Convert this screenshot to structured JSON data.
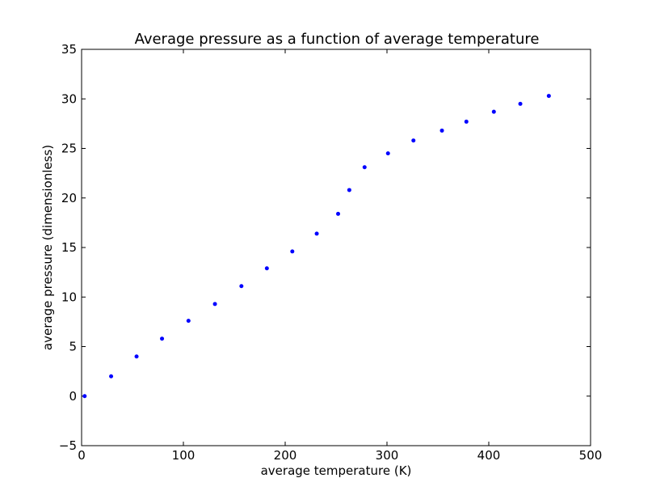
{
  "chart_data": {
    "type": "scatter",
    "title": "Average pressure as a function of average temperature",
    "xlabel": "average temperature (K)",
    "ylabel": "average pressure (dimensionless)",
    "xlim": [
      0,
      500
    ],
    "ylim": [
      -5,
      35
    ],
    "xticks": [
      0,
      100,
      200,
      300,
      400,
      500
    ],
    "yticks": [
      -5,
      0,
      5,
      10,
      15,
      20,
      25,
      30,
      35
    ],
    "xtick_labels": [
      "0",
      "100",
      "200",
      "300",
      "400",
      "500"
    ],
    "ytick_labels": [
      "−5",
      "0",
      "5",
      "10",
      "15",
      "20",
      "25",
      "30",
      "35"
    ],
    "grid": false,
    "marker_color": "#0000ff",
    "series": [
      {
        "x": [
          3,
          29,
          54,
          79,
          105,
          131,
          157,
          182,
          207,
          231,
          252,
          263,
          278,
          301,
          326,
          354,
          378,
          405,
          431,
          459
        ],
        "y": [
          0.0,
          2.0,
          4.0,
          5.8,
          7.6,
          9.3,
          11.1,
          12.9,
          14.6,
          16.4,
          18.4,
          20.8,
          23.1,
          24.5,
          25.8,
          26.8,
          27.7,
          28.7,
          29.5,
          30.3
        ]
      }
    ]
  }
}
